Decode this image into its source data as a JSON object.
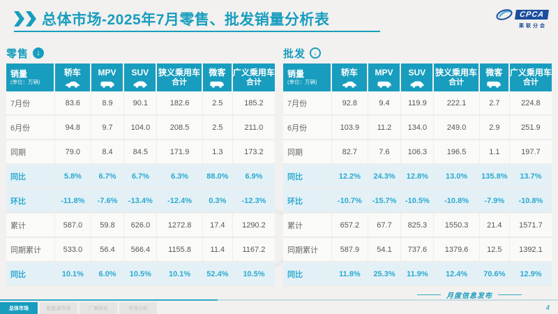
{
  "header": {
    "title": "总体市场-2025年7月零售、批发销量分析表",
    "logo": {
      "abbr": "CPCA",
      "name": "乘联分会"
    }
  },
  "columns": [
    {
      "label": "销量",
      "sub": "(单位：万辆)"
    },
    {
      "label": "轿车",
      "icon": "sedan-icon"
    },
    {
      "label": "MPV",
      "icon": "mpv-icon"
    },
    {
      "label": "SUV",
      "icon": "suv-icon"
    },
    {
      "label": "狭义乘用车",
      "label2": "合计"
    },
    {
      "label": "微客",
      "icon": "van-icon"
    },
    {
      "label": "广义乘用车",
      "label2": "合计"
    }
  ],
  "tables": [
    {
      "section": "零售",
      "section_icon": "download-circle-filled-icon",
      "rows": [
        {
          "label": "7月份",
          "highlight": false,
          "values": [
            "83.6",
            "8.9",
            "90.1",
            "182.6",
            "2.5",
            "185.2"
          ]
        },
        {
          "label": "6月份",
          "highlight": false,
          "values": [
            "94.8",
            "9.7",
            "104.0",
            "208.5",
            "2.5",
            "211.0"
          ]
        },
        {
          "label": "同期",
          "highlight": false,
          "values": [
            "79.0",
            "8.4",
            "84.5",
            "171.9",
            "1.3",
            "173.2"
          ]
        },
        {
          "label": "同比",
          "highlight": true,
          "values": [
            "5.8%",
            "6.7%",
            "6.7%",
            "6.3%",
            "88.0%",
            "6.9%"
          ]
        },
        {
          "label": "环比",
          "highlight": true,
          "values": [
            "-11.8%",
            "-7.6%",
            "-13.4%",
            "-12.4%",
            "0.3%",
            "-12.3%"
          ]
        },
        {
          "label": "累计",
          "highlight": false,
          "values": [
            "587.0",
            "59.8",
            "626.0",
            "1272.8",
            "17.4",
            "1290.2"
          ]
        },
        {
          "label": "同期累计",
          "highlight": false,
          "values": [
            "533.0",
            "56.4",
            "566.4",
            "1155.8",
            "11.4",
            "1167.2"
          ]
        },
        {
          "label": "同比",
          "highlight": true,
          "values": [
            "10.1%",
            "6.0%",
            "10.5%",
            "10.1%",
            "52.4%",
            "10.5%"
          ]
        }
      ]
    },
    {
      "section": "批发",
      "section_icon": "download-circle-outline-icon",
      "rows": [
        {
          "label": "7月份",
          "highlight": false,
          "values": [
            "92.8",
            "9.4",
            "119.9",
            "222.1",
            "2.7",
            "224.8"
          ]
        },
        {
          "label": "6月份",
          "highlight": false,
          "values": [
            "103.9",
            "11.2",
            "134.0",
            "249.0",
            "2.9",
            "251.9"
          ]
        },
        {
          "label": "同期",
          "highlight": false,
          "values": [
            "82.7",
            "7.6",
            "106.3",
            "196.5",
            "1.1",
            "197.7"
          ]
        },
        {
          "label": "同比",
          "highlight": true,
          "values": [
            "12.2%",
            "24.3%",
            "12.8%",
            "13.0%",
            "135.8%",
            "13.7%"
          ]
        },
        {
          "label": "环比",
          "highlight": true,
          "values": [
            "-10.7%",
            "-15.7%",
            "-10.5%",
            "-10.8%",
            "-7.9%",
            "-10.8%"
          ]
        },
        {
          "label": "累计",
          "highlight": false,
          "values": [
            "657.2",
            "67.7",
            "825.3",
            "1550.3",
            "21.4",
            "1571.7"
          ]
        },
        {
          "label": "同期累计",
          "highlight": false,
          "values": [
            "587.9",
            "54.1",
            "737.6",
            "1379.6",
            "12.5",
            "1392.1"
          ]
        },
        {
          "label": "同比",
          "highlight": true,
          "values": [
            "11.8%",
            "25.3%",
            "11.9%",
            "12.4%",
            "70.6%",
            "12.9%"
          ]
        }
      ]
    }
  ],
  "footer": {
    "tabs": [
      {
        "label": "总体市场",
        "active": true
      },
      {
        "label": "新能源市场",
        "active": false
      },
      {
        "label": "厂商排名",
        "active": false
      },
      {
        "label": "市场分析",
        "active": false
      }
    ],
    "note": "月度信息发布",
    "page_number": "4"
  },
  "colors": {
    "accent_teal": "#189DBE",
    "highlight_bg": "#E3F1F7",
    "highlight_text": "#2BA9CE",
    "logo_blue": "#1D4E9E",
    "page_bg": "#F2F1EF"
  }
}
